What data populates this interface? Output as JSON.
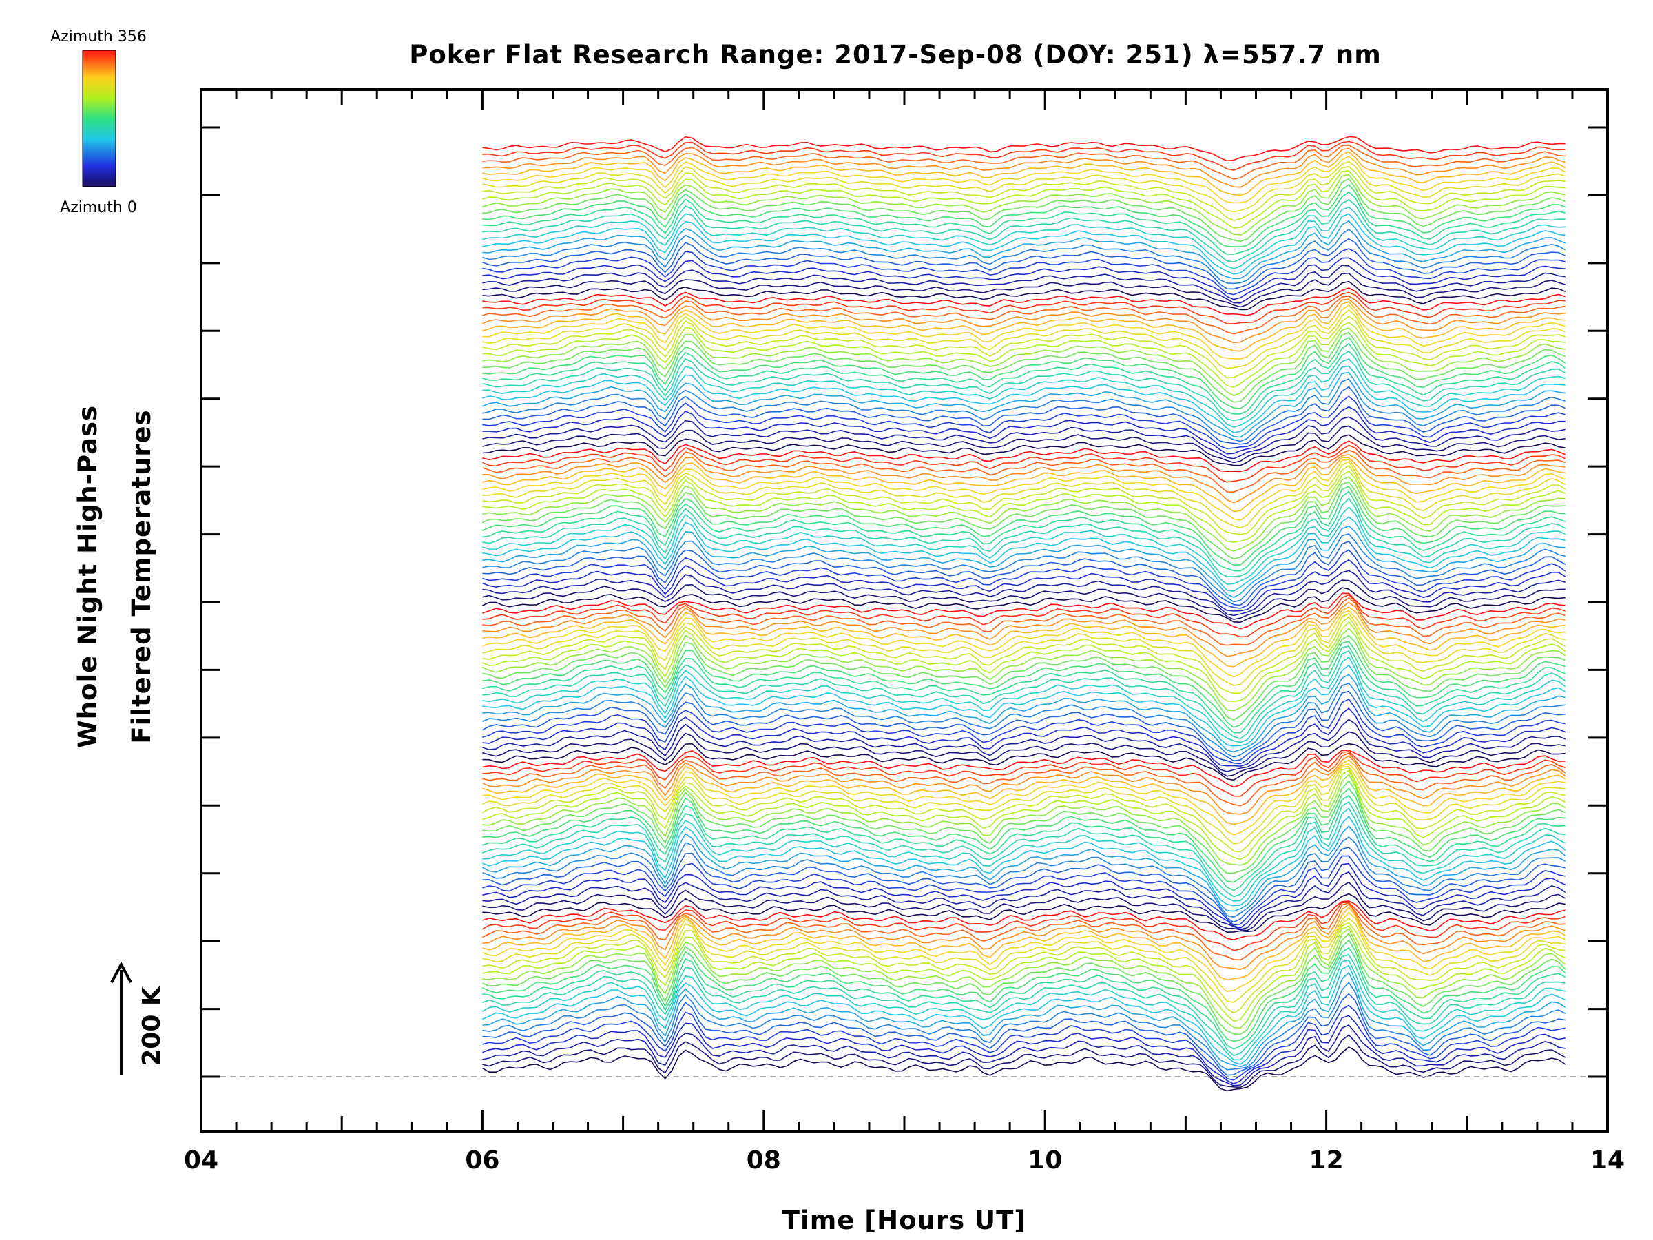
{
  "chart_data": {
    "type": "line",
    "title": "Poker Flat Research Range: 2017-Sep-08 (DOY: 251) λ=557.7 nm",
    "xlabel": "Time [Hours UT]",
    "ylabel_line1": "Whole Night High-Pass",
    "ylabel_line2": "Filtered Temperatures",
    "xlim": [
      4,
      14
    ],
    "x_tick_labels": [
      "04",
      "06",
      "08",
      "10",
      "12",
      "14"
    ],
    "x_minor_step": 0.25,
    "y_ticks_count": 15,
    "data_time_range": [
      6.0,
      13.7
    ],
    "stacked_series_count": 144,
    "series_per_cycle": 24,
    "scale_bar_label": "200 K",
    "colorbar": {
      "top_label": "Azimuth 356",
      "bottom_label": "Azimuth 0",
      "colormap": "rainbow",
      "range": [
        0,
        356
      ]
    },
    "baseline_dashed": true,
    "colors": {
      "axis": "#000000",
      "baseline": "#aaaaaa",
      "background": "#ffffff"
    }
  }
}
